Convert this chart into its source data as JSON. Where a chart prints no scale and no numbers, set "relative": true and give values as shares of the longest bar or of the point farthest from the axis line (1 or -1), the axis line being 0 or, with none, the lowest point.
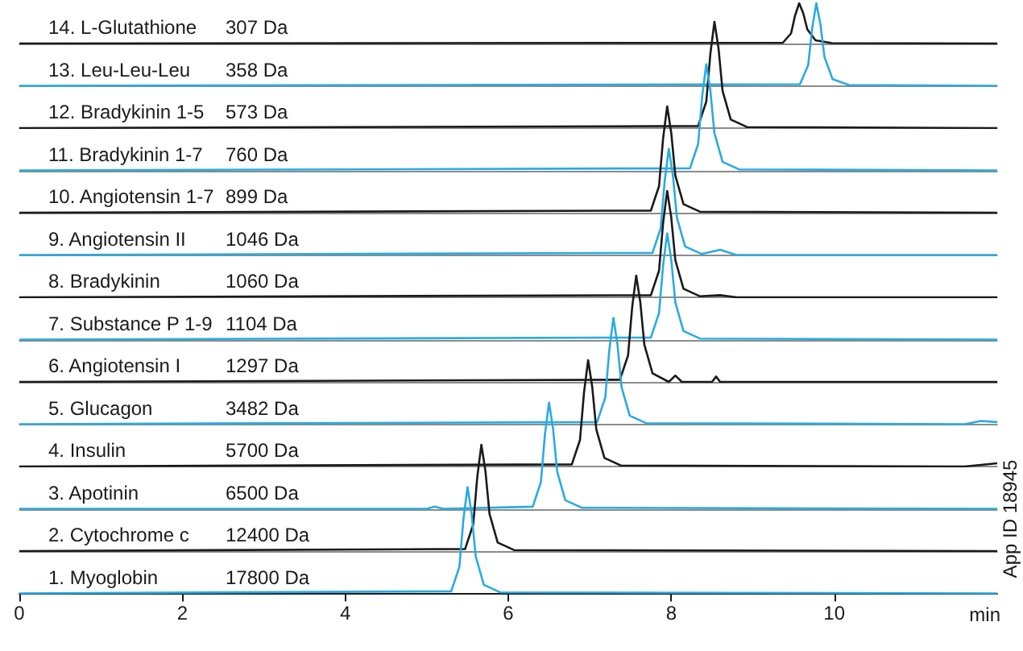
{
  "chart_data": [
    {
      "type": "line",
      "relative": true,
      "tick_labels": false,
      "xlim": [
        0,
        12
      ],
      "xticks": [
        0,
        2,
        4,
        6,
        8,
        10
      ],
      "annotations": [
        "307 Da"
      ],
      "series": [
        {
          "name": "14. L-Glutathione",
          "color": "#1a1a1a",
          "x": [
            0,
            9.37,
            9.47,
            9.52,
            9.57,
            9.62,
            9.67,
            9.77,
            9.97,
            12
          ],
          "values": [
            0,
            0.02,
            0.25,
            0.7,
            1,
            0.75,
            0.35,
            0.08,
            0.01,
            0
          ]
        }
      ]
    },
    {
      "type": "line",
      "relative": true,
      "tick_labels": false,
      "xlim": [
        0,
        12
      ],
      "xticks": [
        0,
        2,
        4,
        6,
        8,
        10
      ],
      "annotations": [
        "358 Da"
      ],
      "series": [
        {
          "name": "13. Leu-Leu-Leu",
          "color": "#29abe2",
          "x": [
            0,
            9.58,
            9.68,
            9.73,
            9.78,
            9.83,
            9.88,
            9.98,
            10.18,
            12
          ],
          "values": [
            0,
            0.02,
            0.25,
            0.7,
            1,
            0.75,
            0.35,
            0.08,
            0.01,
            0
          ]
        }
      ]
    },
    {
      "type": "line",
      "relative": true,
      "tick_labels": false,
      "xlim": [
        0,
        12
      ],
      "xticks": [
        0,
        2,
        4,
        6,
        8,
        10
      ],
      "annotations": [
        "573 Da"
      ],
      "series": [
        {
          "name": "12. Bradykinin 1-5",
          "color": "#1a1a1a",
          "x": [
            0,
            8.33,
            8.43,
            8.48,
            8.53,
            8.58,
            8.63,
            8.73,
            8.93,
            12
          ],
          "values": [
            0,
            0.02,
            0.25,
            0.7,
            1,
            0.75,
            0.35,
            0.08,
            0.01,
            0
          ]
        }
      ]
    },
    {
      "type": "line",
      "relative": true,
      "tick_labels": false,
      "xlim": [
        0,
        12
      ],
      "xticks": [
        0,
        2,
        4,
        6,
        8,
        10
      ],
      "annotations": [
        "760 Da"
      ],
      "series": [
        {
          "name": "11. Bradykinin 1-7",
          "color": "#29abe2",
          "x": [
            0,
            8.23,
            8.33,
            8.38,
            8.43,
            8.48,
            8.53,
            8.63,
            8.83,
            12
          ],
          "values": [
            0,
            0.02,
            0.25,
            0.7,
            1,
            0.75,
            0.35,
            0.08,
            0.01,
            0
          ]
        }
      ]
    },
    {
      "type": "line",
      "relative": true,
      "tick_labels": false,
      "xlim": [
        0,
        12
      ],
      "xticks": [
        0,
        2,
        4,
        6,
        8,
        10
      ],
      "annotations": [
        "899 Da"
      ],
      "series": [
        {
          "name": "10. Angiotensin 1-7",
          "color": "#1a1a1a",
          "x": [
            0,
            7.75,
            7.85,
            7.9,
            7.95,
            8.0,
            8.05,
            8.15,
            8.35,
            12
          ],
          "values": [
            0,
            0.02,
            0.25,
            0.7,
            1,
            0.75,
            0.35,
            0.08,
            0.01,
            0
          ]
        }
      ]
    },
    {
      "type": "line",
      "relative": true,
      "tick_labels": false,
      "xlim": [
        0,
        12
      ],
      "xticks": [
        0,
        2,
        4,
        6,
        8,
        10
      ],
      "annotations": [
        "1046 Da"
      ],
      "series": [
        {
          "name": "9. Angiotensin II",
          "color": "#29abe2",
          "x": [
            0,
            7.77,
            7.87,
            7.92,
            7.97,
            8.02,
            8.07,
            8.17,
            8.37,
            8.6,
            8.8,
            12
          ],
          "values": [
            0,
            0.02,
            0.25,
            0.7,
            1,
            0.75,
            0.35,
            0.08,
            0.01,
            0.05,
            0,
            0
          ]
        }
      ]
    },
    {
      "type": "line",
      "relative": true,
      "tick_labels": false,
      "xlim": [
        0,
        12
      ],
      "xticks": [
        0,
        2,
        4,
        6,
        8,
        10
      ],
      "annotations": [
        "1060 Da"
      ],
      "series": [
        {
          "name": "8. Bradykinin",
          "color": "#1a1a1a",
          "x": [
            0,
            7.75,
            7.85,
            7.9,
            7.95,
            8.0,
            8.05,
            8.15,
            8.35,
            8.6,
            8.8,
            12
          ],
          "values": [
            0,
            0.02,
            0.25,
            0.7,
            1,
            0.75,
            0.35,
            0.08,
            0.01,
            0.02,
            0,
            0
          ]
        }
      ]
    },
    {
      "type": "line",
      "relative": true,
      "tick_labels": false,
      "xlim": [
        0,
        12
      ],
      "xticks": [
        0,
        2,
        4,
        6,
        8,
        10
      ],
      "annotations": [
        "1104 Da"
      ],
      "series": [
        {
          "name": "7. Substance P 1-9",
          "color": "#29abe2",
          "x": [
            0,
            7.75,
            7.85,
            7.9,
            7.95,
            8.0,
            8.05,
            8.15,
            8.35,
            12
          ],
          "values": [
            0,
            0.02,
            0.25,
            0.7,
            1,
            0.75,
            0.35,
            0.08,
            0.01,
            0
          ]
        }
      ]
    },
    {
      "type": "line",
      "relative": true,
      "tick_labels": false,
      "xlim": [
        0,
        12
      ],
      "xticks": [
        0,
        2,
        4,
        6,
        8,
        10
      ],
      "annotations": [
        "1297 Da"
      ],
      "series": [
        {
          "name": "6. Angiotensin I",
          "color": "#1a1a1a",
          "x": [
            0,
            7.37,
            7.47,
            7.52,
            7.57,
            7.62,
            7.67,
            7.77,
            7.97,
            8.05,
            8.13,
            8.5,
            8.55,
            8.6,
            12
          ],
          "values": [
            0,
            0.02,
            0.25,
            0.7,
            1,
            0.75,
            0.35,
            0.08,
            0,
            0.06,
            0,
            0,
            0.05,
            0,
            0
          ]
        }
      ]
    },
    {
      "type": "line",
      "relative": true,
      "tick_labels": false,
      "xlim": [
        0,
        12
      ],
      "xticks": [
        0,
        2,
        4,
        6,
        8,
        10
      ],
      "annotations": [
        "3482 Da"
      ],
      "series": [
        {
          "name": "5. Glucagon",
          "color": "#29abe2",
          "x": [
            0,
            7.09,
            7.19,
            7.24,
            7.29,
            7.34,
            7.39,
            7.49,
            7.69,
            11.6,
            11.8,
            12
          ],
          "values": [
            0,
            0.02,
            0.25,
            0.7,
            1,
            0.75,
            0.35,
            0.08,
            0.01,
            0,
            0.03,
            0.02
          ]
        }
      ]
    },
    {
      "type": "line",
      "relative": true,
      "tick_labels": false,
      "xlim": [
        0,
        12
      ],
      "xticks": [
        0,
        2,
        4,
        6,
        8,
        10
      ],
      "annotations": [
        "5700 Da"
      ],
      "series": [
        {
          "name": "4. Insulin",
          "color": "#1a1a1a",
          "x": [
            0,
            6.78,
            6.88,
            6.93,
            6.98,
            7.03,
            7.08,
            7.18,
            7.38,
            11.6,
            12
          ],
          "values": [
            0,
            0.02,
            0.25,
            0.7,
            1,
            0.75,
            0.35,
            0.08,
            0.01,
            0,
            0.03
          ]
        }
      ]
    },
    {
      "type": "line",
      "relative": true,
      "tick_labels": false,
      "xlim": [
        0,
        12
      ],
      "xticks": [
        0,
        2,
        4,
        6,
        8,
        10
      ],
      "annotations": [
        "6500 Da"
      ],
      "series": [
        {
          "name": "3. Apotinin",
          "color": "#29abe2",
          "x": [
            0,
            5.0,
            5.1,
            5.2,
            6.3,
            6.4,
            6.45,
            6.5,
            6.55,
            6.6,
            6.7,
            6.9,
            12
          ],
          "values": [
            0,
            0,
            0.02,
            0,
            0.02,
            0.25,
            0.7,
            1,
            0.75,
            0.35,
            0.08,
            0.01,
            0
          ]
        }
      ]
    },
    {
      "type": "line",
      "relative": true,
      "tick_labels": false,
      "xlim": [
        0,
        12
      ],
      "xticks": [
        0,
        2,
        4,
        6,
        8,
        10
      ],
      "annotations": [
        "12400 Da"
      ],
      "series": [
        {
          "name": "2. Cytochrome c",
          "color": "#1a1a1a",
          "x": [
            0,
            5.47,
            5.57,
            5.62,
            5.67,
            5.72,
            5.77,
            5.87,
            6.07,
            12
          ],
          "values": [
            0,
            0.02,
            0.25,
            0.7,
            1,
            0.75,
            0.35,
            0.08,
            0.01,
            0
          ]
        }
      ]
    },
    {
      "type": "line",
      "relative": true,
      "tick_labels": "x",
      "xlim": [
        0,
        12
      ],
      "xticks": [
        0,
        2,
        4,
        6,
        8,
        10
      ],
      "xlabel": "min",
      "annotations": [
        "17800 Da",
        "App ID 18945"
      ],
      "series": [
        {
          "name": "1. Myoglobin",
          "color": "#29abe2",
          "x": [
            0,
            5.3,
            5.4,
            5.45,
            5.5,
            5.55,
            5.6,
            5.7,
            5.9,
            12
          ],
          "values": [
            0,
            0.02,
            0.25,
            0.7,
            1,
            0.75,
            0.35,
            0.08,
            0.01,
            0
          ]
        }
      ]
    }
  ]
}
